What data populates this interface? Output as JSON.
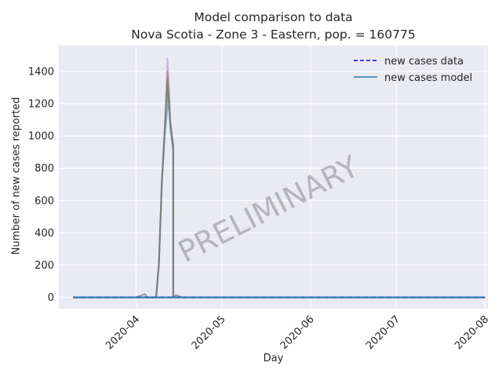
{
  "chart_data": {
    "type": "line",
    "title": "Model comparison to data",
    "subtitle": "Nova Scotia - Zone 3 - Eastern, pop. = 160775",
    "xlabel": "Day",
    "ylabel": "Number of new cases reported",
    "xlim": [
      "2020-03-05",
      "2020-08-02"
    ],
    "ylim": [
      -70,
      1560
    ],
    "x_ticks": [
      "2020-04",
      "2020-05",
      "2020-06",
      "2020-07",
      "2020-08"
    ],
    "y_ticks": [
      0,
      200,
      400,
      600,
      800,
      1000,
      1200,
      1400
    ],
    "grid": true,
    "legend_position": "top-right",
    "watermark": "PRELIMINARY",
    "legend": [
      {
        "label": "new cases data",
        "style": "dashed",
        "color": "#0000ff"
      },
      {
        "label": "new cases model",
        "style": "solid",
        "color": "#1f77b4"
      }
    ],
    "model_series": [
      {
        "color": "#1f77b4",
        "opacity": 0.5,
        "points": [
          [
            "2020-03-10",
            0
          ],
          [
            "2020-04-04",
            0
          ],
          [
            "2020-04-06",
            0
          ],
          [
            "2020-04-08",
            0
          ],
          [
            "2020-04-09",
            200
          ],
          [
            "2020-04-10",
            700
          ],
          [
            "2020-04-11",
            1000
          ],
          [
            "2020-04-12",
            1180
          ],
          [
            "2020-04-12",
            1300
          ],
          [
            "2020-04-13",
            1050
          ],
          [
            "2020-04-14",
            900
          ],
          [
            "2020-04-14",
            0
          ],
          [
            "2020-08-01",
            0
          ]
        ]
      },
      {
        "color": "#9467bd",
        "opacity": 0.4,
        "points": [
          [
            "2020-04-08",
            0
          ],
          [
            "2020-04-09",
            220
          ],
          [
            "2020-04-10",
            720
          ],
          [
            "2020-04-11",
            1050
          ],
          [
            "2020-04-12",
            1480
          ],
          [
            "2020-04-13",
            1100
          ],
          [
            "2020-04-14",
            950
          ],
          [
            "2020-04-14",
            0
          ]
        ]
      },
      {
        "color": "#d62728",
        "opacity": 0.35,
        "points": [
          [
            "2020-04-08",
            0
          ],
          [
            "2020-04-09",
            210
          ],
          [
            "2020-04-10",
            710
          ],
          [
            "2020-04-11",
            1020
          ],
          [
            "2020-04-12",
            1400
          ],
          [
            "2020-04-13",
            1080
          ],
          [
            "2020-04-14",
            930
          ],
          [
            "2020-04-14",
            0
          ]
        ]
      },
      {
        "color": "#2ca02c",
        "opacity": 0.45,
        "points": [
          [
            "2020-04-08",
            0
          ],
          [
            "2020-04-09",
            205
          ],
          [
            "2020-04-10",
            705
          ],
          [
            "2020-04-11",
            1010
          ],
          [
            "2020-04-12",
            1360
          ],
          [
            "2020-04-13",
            1070
          ],
          [
            "2020-04-14",
            920
          ],
          [
            "2020-04-14",
            0
          ]
        ]
      },
      {
        "color": "#7f7f7f",
        "opacity": 0.75,
        "points": [
          [
            "2020-04-01",
            0
          ],
          [
            "2020-04-04",
            20
          ],
          [
            "2020-04-05",
            0
          ],
          [
            "2020-04-07",
            0
          ],
          [
            "2020-04-08",
            0
          ],
          [
            "2020-04-09",
            215
          ],
          [
            "2020-04-10",
            715
          ],
          [
            "2020-04-11",
            1030
          ],
          [
            "2020-04-12",
            1340
          ],
          [
            "2020-04-13",
            1060
          ],
          [
            "2020-04-14",
            940
          ],
          [
            "2020-04-14",
            0
          ],
          [
            "2020-04-15",
            15
          ],
          [
            "2020-04-17",
            0
          ]
        ]
      }
    ],
    "series": [
      {
        "name": "new cases data",
        "color": "#0000ff",
        "style": "dashed",
        "x": [
          "2020-03-10",
          "2020-08-01"
        ],
        "y": [
          0,
          0
        ]
      },
      {
        "name": "new cases model",
        "color": "#1f77b4",
        "style": "solid",
        "x": [
          "2020-03-10",
          "2020-08-01"
        ],
        "y": [
          0,
          0
        ]
      }
    ]
  }
}
